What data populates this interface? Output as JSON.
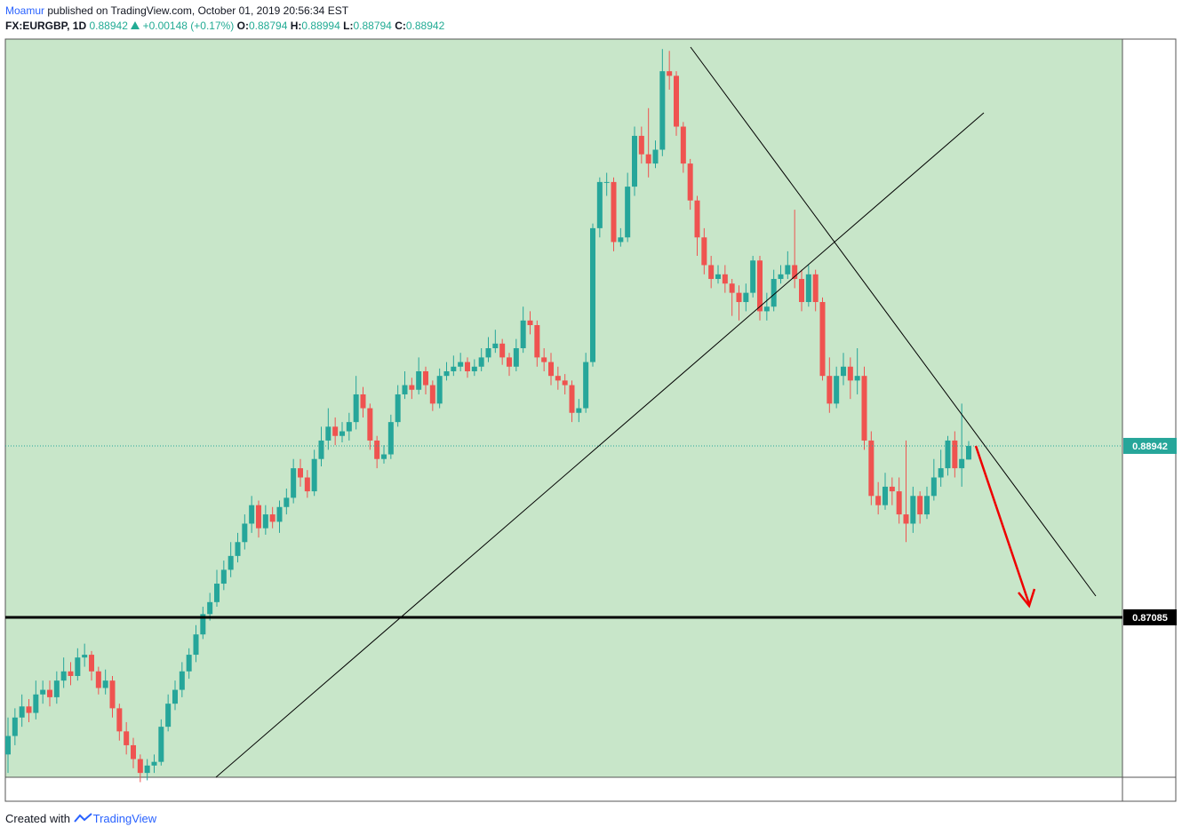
{
  "header": {
    "author": "Moamur",
    "published": "published on TradingView.com, October 01, 2019 20:56:34 EST",
    "symbol": "FX:EURGBP, 1D",
    "change": "+0.00148 (+0.17%)",
    "ohlc_labels": [
      "O:",
      "H:",
      "L:",
      "C:"
    ]
  },
  "footer": {
    "created_with": "Created with",
    "brand": "TradingView"
  },
  "chart_data": {
    "type": "candlestick",
    "up_color": "#26a69a",
    "down_color": "#ef5350",
    "background": "#c8e6c9",
    "ylim": [
      0.85353,
      0.93348
    ],
    "price_line": 0.88942,
    "level": 0.87085,
    "open": [
      0.856,
      0.858,
      0.86,
      0.8612,
      0.8605,
      0.8625,
      0.863,
      0.8622,
      0.864,
      0.865,
      0.8645,
      0.8665,
      0.8668,
      0.865,
      0.8632,
      0.864,
      0.861,
      0.8585,
      0.857,
      0.8555,
      0.854,
      0.8548,
      0.8552,
      0.859,
      0.8615,
      0.863,
      0.865,
      0.8668,
      0.869,
      0.8712,
      0.8725,
      0.8745,
      0.876,
      0.8775,
      0.879,
      0.881,
      0.883,
      0.8805,
      0.882,
      0.8812,
      0.8828,
      0.8838,
      0.887,
      0.886,
      0.8845,
      0.888,
      0.89,
      0.8915,
      0.8905,
      0.891,
      0.892,
      0.895,
      0.8935,
      0.89,
      0.888,
      0.8885,
      0.892,
      0.895,
      0.896,
      0.8955,
      0.8975,
      0.896,
      0.894,
      0.897,
      0.8975,
      0.898,
      0.8985,
      0.8975,
      0.898,
      0.899,
      0.9,
      0.9005,
      0.899,
      0.898,
      0.9,
      0.903,
      0.9025,
      0.899,
      0.8985,
      0.897,
      0.8965,
      0.896,
      0.893,
      0.8935,
      0.8985,
      0.913,
      0.918,
      0.918,
      0.9115,
      0.912,
      0.9175,
      0.923,
      0.921,
      0.92,
      0.9215,
      0.93,
      0.9295,
      0.924,
      0.92,
      0.916,
      0.912,
      0.909,
      0.9075,
      0.908,
      0.907,
      0.906,
      0.905,
      0.906,
      0.9095,
      0.904,
      0.9045,
      0.9075,
      0.908,
      0.909,
      0.9075,
      0.905,
      0.908,
      0.905,
      0.897,
      0.894,
      0.897,
      0.898,
      0.8965,
      0.897,
      0.89,
      0.884,
      0.883,
      0.885,
      0.8845,
      0.882,
      0.881,
      0.884,
      0.882,
      0.884,
      0.886,
      0.887,
      0.89,
      0.887,
      0.88794
    ],
    "high": [
      0.86,
      0.861,
      0.8625,
      0.862,
      0.864,
      0.864,
      0.864,
      0.865,
      0.8665,
      0.866,
      0.8675,
      0.868,
      0.8672,
      0.8655,
      0.8652,
      0.8645,
      0.8615,
      0.8595,
      0.8578,
      0.856,
      0.8555,
      0.856,
      0.8598,
      0.8625,
      0.864,
      0.866,
      0.8675,
      0.87,
      0.872,
      0.8735,
      0.876,
      0.877,
      0.879,
      0.88,
      0.882,
      0.884,
      0.8835,
      0.883,
      0.8828,
      0.8835,
      0.8848,
      0.888,
      0.888,
      0.8868,
      0.889,
      0.8915,
      0.8935,
      0.8925,
      0.892,
      0.893,
      0.897,
      0.8958,
      0.894,
      0.8905,
      0.8895,
      0.8928,
      0.896,
      0.8975,
      0.8968,
      0.899,
      0.898,
      0.8965,
      0.8978,
      0.8985,
      0.8992,
      0.8995,
      0.899,
      0.8988,
      0.9,
      0.9012,
      0.902,
      0.901,
      0.8995,
      0.901,
      0.9045,
      0.904,
      0.903,
      0.9,
      0.8995,
      0.898,
      0.8972,
      0.8965,
      0.8945,
      0.8995,
      0.9135,
      0.9185,
      0.919,
      0.9185,
      0.913,
      0.919,
      0.924,
      0.924,
      0.926,
      0.9225,
      0.9324,
      0.9322,
      0.93,
      0.9245,
      0.9205,
      0.9165,
      0.913,
      0.91,
      0.909,
      0.909,
      0.9075,
      0.9068,
      0.907,
      0.91,
      0.91,
      0.906,
      0.9085,
      0.909,
      0.9105,
      0.915,
      0.9085,
      0.909,
      0.9085,
      0.9055,
      0.899,
      0.898,
      0.8995,
      0.899,
      0.9,
      0.898,
      0.891,
      0.8855,
      0.8865,
      0.886,
      0.886,
      0.89,
      0.885,
      0.8845,
      0.885,
      0.888,
      0.889,
      0.8905,
      0.891,
      0.894,
      0.88994
    ],
    "low": [
      0.854,
      0.857,
      0.859,
      0.8595,
      0.8598,
      0.8615,
      0.8612,
      0.8615,
      0.8632,
      0.8635,
      0.864,
      0.8655,
      0.864,
      0.8625,
      0.8625,
      0.86,
      0.8575,
      0.856,
      0.8545,
      0.853,
      0.8532,
      0.854,
      0.8548,
      0.8585,
      0.8608,
      0.8622,
      0.8642,
      0.866,
      0.8685,
      0.8705,
      0.872,
      0.8738,
      0.8752,
      0.8768,
      0.8782,
      0.88,
      0.8795,
      0.8798,
      0.8805,
      0.88,
      0.882,
      0.8832,
      0.885,
      0.8838,
      0.884,
      0.8872,
      0.889,
      0.8895,
      0.8898,
      0.89,
      0.8912,
      0.8925,
      0.889,
      0.887,
      0.8875,
      0.888,
      0.8915,
      0.8945,
      0.8945,
      0.895,
      0.895,
      0.8932,
      0.8935,
      0.8965,
      0.897,
      0.8975,
      0.8968,
      0.897,
      0.8975,
      0.8985,
      0.8995,
      0.8982,
      0.897,
      0.8975,
      0.8995,
      0.9015,
      0.898,
      0.8975,
      0.896,
      0.8955,
      0.895,
      0.892,
      0.892,
      0.893,
      0.898,
      0.912,
      0.9165,
      0.9105,
      0.911,
      0.9115,
      0.9165,
      0.92,
      0.9185,
      0.9195,
      0.9208,
      0.928,
      0.923,
      0.919,
      0.915,
      0.91,
      0.908,
      0.9065,
      0.907,
      0.906,
      0.9035,
      0.903,
      0.904,
      0.9055,
      0.903,
      0.903,
      0.904,
      0.907,
      0.9075,
      0.9065,
      0.904,
      0.9045,
      0.904,
      0.8965,
      0.893,
      0.8935,
      0.896,
      0.8945,
      0.895,
      0.889,
      0.883,
      0.882,
      0.8825,
      0.883,
      0.881,
      0.879,
      0.88,
      0.881,
      0.8815,
      0.8835,
      0.885,
      0.8862,
      0.886,
      0.885,
      0.88794
    ],
    "close": [
      0.858,
      0.86,
      0.8612,
      0.8605,
      0.8625,
      0.863,
      0.8622,
      0.864,
      0.865,
      0.8645,
      0.8665,
      0.8668,
      0.865,
      0.8632,
      0.864,
      0.861,
      0.8585,
      0.857,
      0.8555,
      0.854,
      0.8548,
      0.8552,
      0.859,
      0.8615,
      0.863,
      0.865,
      0.8668,
      0.869,
      0.8712,
      0.8725,
      0.8745,
      0.876,
      0.8775,
      0.879,
      0.881,
      0.883,
      0.8805,
      0.882,
      0.8812,
      0.8828,
      0.8838,
      0.887,
      0.886,
      0.8845,
      0.888,
      0.89,
      0.8915,
      0.8905,
      0.891,
      0.892,
      0.895,
      0.8935,
      0.89,
      0.888,
      0.8885,
      0.892,
      0.895,
      0.896,
      0.8955,
      0.8975,
      0.896,
      0.894,
      0.897,
      0.8975,
      0.898,
      0.8985,
      0.8975,
      0.898,
      0.899,
      0.9,
      0.9005,
      0.899,
      0.898,
      0.9,
      0.903,
      0.9025,
      0.899,
      0.8985,
      0.897,
      0.8965,
      0.896,
      0.893,
      0.8935,
      0.8985,
      0.913,
      0.918,
      0.918,
      0.9115,
      0.912,
      0.9175,
      0.923,
      0.921,
      0.92,
      0.9215,
      0.93,
      0.9295,
      0.924,
      0.92,
      0.916,
      0.912,
      0.909,
      0.9075,
      0.908,
      0.907,
      0.906,
      0.905,
      0.906,
      0.9095,
      0.904,
      0.9045,
      0.9075,
      0.908,
      0.909,
      0.9075,
      0.905,
      0.908,
      0.905,
      0.897,
      0.894,
      0.897,
      0.898,
      0.8965,
      0.897,
      0.89,
      0.884,
      0.883,
      0.885,
      0.8845,
      0.882,
      0.881,
      0.884,
      0.882,
      0.884,
      0.886,
      0.887,
      0.89,
      0.887,
      0.888,
      0.88942
    ]
  }
}
